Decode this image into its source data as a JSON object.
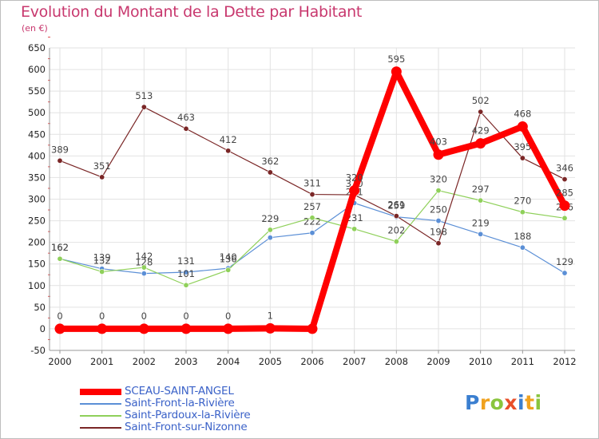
{
  "chart_data": {
    "type": "line",
    "title": "Evolution du Montant de la Dette par Habitant",
    "subtitle": "(en €)",
    "xlabel": "",
    "ylabel": "",
    "x": [
      "2000",
      "2001",
      "2002",
      "2003",
      "2004",
      "2005",
      "2006",
      "2007",
      "2008",
      "2009",
      "2010",
      "2011",
      "2012"
    ],
    "ylim": [
      -50,
      650
    ],
    "yticks": [
      -50,
      0,
      50,
      100,
      150,
      200,
      250,
      300,
      350,
      400,
      450,
      500,
      550,
      600,
      650
    ],
    "grid": true,
    "legend": "bottom-left",
    "series": [
      {
        "name": "SCEAU-SAINT-ANGEL",
        "color": "#ff0000",
        "values": [
          0,
          0,
          0,
          0,
          0,
          1,
          0,
          320,
          595,
          403,
          429,
          468,
          285
        ],
        "labels": [
          "0",
          "0",
          "0",
          "0",
          "0",
          "1",
          "",
          "320",
          "595",
          "403",
          "429",
          "468",
          "285"
        ]
      },
      {
        "name": "Saint-Front-la-Rivière",
        "color": "#5b8fd6",
        "values": [
          162,
          139,
          128,
          131,
          140,
          211,
          222,
          291,
          259,
          250,
          219,
          188,
          129
        ],
        "labels": [
          "162",
          "139",
          "128",
          "131",
          "140",
          "",
          "222",
          "291",
          "259",
          "250",
          "219",
          "188",
          "129"
        ]
      },
      {
        "name": "Saint-Pardoux-la-Rivière",
        "color": "#8fd05a",
        "values": [
          162,
          132,
          142,
          101,
          136,
          229,
          257,
          231,
          202,
          320,
          297,
          270,
          256
        ],
        "labels": [
          "162",
          "132",
          "142",
          "101",
          "136",
          "229",
          "257",
          "231",
          "202",
          "320",
          "297",
          "270",
          "256"
        ]
      },
      {
        "name": "Saint-Front-sur-Nizonne",
        "color": "#7a2626",
        "values": [
          389,
          351,
          513,
          463,
          412,
          362,
          311,
          310,
          261,
          198,
          502,
          395,
          346
        ],
        "labels": [
          "389",
          "351",
          "513",
          "463",
          "412",
          "362",
          "311",
          "310",
          "261",
          "198",
          "502",
          "395",
          "346"
        ]
      }
    ]
  },
  "brand": {
    "logo_text": "Proxiti",
    "colors": [
      "#3b7fd0",
      "#f0a21f",
      "#8ac53e",
      "#e84f2a",
      "#3b7fd0",
      "#f0a21f",
      "#8ac53e"
    ]
  }
}
